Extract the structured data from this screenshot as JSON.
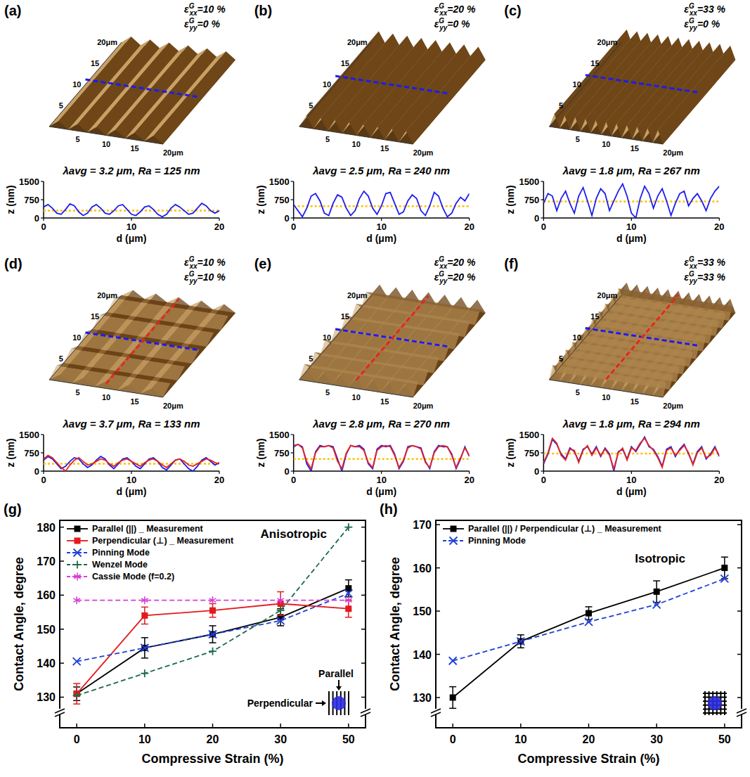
{
  "chart_data": [
    {
      "panel": "(a)",
      "type": "line",
      "title": "λavg = 3.2 μm, Ra = 125 nm",
      "strain": [
        {
          "symbol": "ε",
          "sup": "G",
          "sub": "xx",
          "text": "=10 %"
        },
        {
          "symbol": "ε",
          "sup": "G",
          "sub": "yy",
          "text": "=0 %"
        }
      ],
      "surface_labels": {
        "left": [
          "20μm",
          "15",
          "10",
          "5"
        ],
        "front": [
          "5",
          "10",
          "15",
          "20μm"
        ]
      },
      "x_label": "d (μm)",
      "y_label": "z (nm)",
      "x": [
        0,
        0.5,
        1,
        1.5,
        2,
        2.5,
        3,
        3.5,
        4,
        4.5,
        5,
        5.5,
        6,
        6.5,
        7,
        7.5,
        8,
        8.5,
        9,
        9.5,
        10,
        10.5,
        11,
        11.5,
        12,
        12.5,
        13,
        13.5,
        14,
        14.5,
        15,
        15.5,
        16,
        16.5,
        17,
        17.5,
        18,
        18.5,
        19,
        19.5,
        20
      ],
      "xlim": [
        0,
        20
      ],
      "xticks": [
        0,
        10,
        20
      ],
      "ylim": [
        0,
        1500
      ],
      "yticks": [
        0,
        750,
        1500
      ],
      "mean_z": 300,
      "series": [
        {
          "color": "#1c1cf0",
          "values": [
            450,
            550,
            400,
            200,
            150,
            350,
            580,
            500,
            250,
            100,
            200,
            450,
            550,
            400,
            200,
            150,
            300,
            500,
            550,
            350,
            150,
            100,
            250,
            450,
            500,
            350,
            150,
            50,
            150,
            400,
            550,
            450,
            300,
            150,
            200,
            400,
            600,
            500,
            300,
            200,
            300
          ]
        }
      ]
    },
    {
      "panel": "(b)",
      "type": "line",
      "title": "λavg = 2.5 μm, Ra = 240 nm",
      "strain": [
        {
          "symbol": "ε",
          "sup": "G",
          "sub": "xx",
          "text": "=20 %"
        },
        {
          "symbol": "ε",
          "sup": "G",
          "sub": "yy",
          "text": "=0 %"
        }
      ],
      "surface_labels": {
        "left": [
          "20μm",
          "15",
          "10",
          "5"
        ],
        "front": [
          "5",
          "10",
          "15",
          "20μm"
        ]
      },
      "x_label": "d (μm)",
      "y_label": "z (nm)",
      "x": [
        0,
        0.5,
        1,
        1.5,
        2,
        2.5,
        3,
        3.5,
        4,
        4.5,
        5,
        5.5,
        6,
        6.5,
        7,
        7.5,
        8,
        8.5,
        9,
        9.5,
        10,
        10.5,
        11,
        11.5,
        12,
        12.5,
        13,
        13.5,
        14,
        14.5,
        15,
        15.5,
        16,
        16.5,
        17,
        17.5,
        18,
        18.5,
        19,
        19.5,
        20
      ],
      "xlim": [
        0,
        20
      ],
      "xticks": [
        0,
        10,
        20
      ],
      "ylim": [
        0,
        1500
      ],
      "yticks": [
        0,
        750,
        1500
      ],
      "mean_z": 480,
      "series": [
        {
          "color": "#1c1cf0",
          "values": [
            550,
            300,
            50,
            400,
            900,
            1000,
            700,
            200,
            100,
            600,
            950,
            850,
            400,
            100,
            300,
            800,
            1100,
            900,
            400,
            150,
            500,
            1000,
            1050,
            600,
            150,
            250,
            700,
            950,
            800,
            300,
            100,
            500,
            1050,
            900,
            400,
            50,
            200,
            600,
            850,
            700,
            1000
          ]
        }
      ]
    },
    {
      "panel": "(c)",
      "type": "line",
      "title": "λavg = 1.8 μm, Ra = 267 nm",
      "strain": [
        {
          "symbol": "ε",
          "sup": "G",
          "sub": "xx",
          "text": "=33 %"
        },
        {
          "symbol": "ε",
          "sup": "G",
          "sub": "yy",
          "text": "=0 %"
        }
      ],
      "surface_labels": {
        "left": [
          "20μm",
          "15",
          "10",
          "5"
        ],
        "front": [
          "5",
          "10",
          "15",
          "20μm"
        ]
      },
      "x_label": "d (μm)",
      "y_label": "z (nm)",
      "x": [
        0,
        0.5,
        1,
        1.5,
        2,
        2.5,
        3,
        3.5,
        4,
        4.5,
        5,
        5.5,
        6,
        6.5,
        7,
        7.5,
        8,
        8.5,
        9,
        9.5,
        10,
        10.5,
        11,
        11.5,
        12,
        12.5,
        13,
        13.5,
        14,
        14.5,
        15,
        15.5,
        16,
        16.5,
        17,
        17.5,
        18,
        18.5,
        19,
        19.5,
        20
      ],
      "xlim": [
        0,
        20
      ],
      "xticks": [
        0,
        10,
        20
      ],
      "ylim": [
        0,
        1500
      ],
      "yticks": [
        0,
        750,
        1500
      ],
      "mean_z": 680,
      "series": [
        {
          "color": "#1c1cf0",
          "values": [
            600,
            1000,
            900,
            300,
            800,
            1100,
            600,
            200,
            900,
            1250,
            700,
            100,
            800,
            1200,
            1000,
            300,
            700,
            1100,
            1400,
            900,
            200,
            0,
            800,
            1300,
            1000,
            400,
            900,
            1200,
            700,
            100,
            600,
            1000,
            1100,
            500,
            800,
            1000,
            700,
            300,
            800,
            1100,
            1300
          ]
        }
      ]
    },
    {
      "panel": "(d)",
      "type": "line",
      "title": "λavg = 3.7 μm, Ra = 133 nm",
      "strain": [
        {
          "symbol": "ε",
          "sup": "G",
          "sub": "xx",
          "text": "=10 %"
        },
        {
          "symbol": "ε",
          "sup": "G",
          "sub": "yy",
          "text": "=10 %"
        }
      ],
      "surface_labels": {
        "left": [
          "20μm",
          "15",
          "10",
          "5"
        ],
        "front": [
          "5",
          "10",
          "15",
          "20μm"
        ]
      },
      "x_label": "d (μm)",
      "y_label": "z (nm)",
      "x": [
        0,
        0.5,
        1,
        1.5,
        2,
        2.5,
        3,
        3.5,
        4,
        4.5,
        5,
        5.5,
        6,
        6.5,
        7,
        7.5,
        8,
        8.5,
        9,
        9.5,
        10,
        10.5,
        11,
        11.5,
        12,
        12.5,
        13,
        13.5,
        14,
        14.5,
        15,
        15.5,
        16,
        16.5,
        17,
        17.5,
        18,
        18.5,
        19,
        19.5,
        20
      ],
      "xlim": [
        0,
        20
      ],
      "xticks": [
        0,
        10,
        20
      ],
      "ylim": [
        0,
        1500
      ],
      "yticks": [
        0,
        750,
        1500
      ],
      "mean_z": 300,
      "series": [
        {
          "color": "#1c1cf0",
          "values": [
            450,
            600,
            500,
            300,
            100,
            200,
            400,
            550,
            500,
            300,
            150,
            250,
            450,
            600,
            500,
            250,
            100,
            300,
            500,
            550,
            400,
            200,
            100,
            300,
            500,
            550,
            400,
            150,
            50,
            250,
            450,
            500,
            300,
            100,
            0,
            200,
            450,
            550,
            400,
            250,
            350
          ]
        },
        {
          "color": "#e8261c",
          "values": [
            500,
            650,
            550,
            350,
            150,
            0,
            250,
            450,
            550,
            400,
            250,
            300,
            400,
            500,
            450,
            300,
            200,
            350,
            450,
            500,
            400,
            300,
            200,
            350,
            450,
            500,
            400,
            250,
            150,
            300,
            450,
            500,
            400,
            250,
            200,
            300,
            400,
            500,
            450,
            350,
            300
          ]
        }
      ]
    },
    {
      "panel": "(e)",
      "type": "line",
      "title": "λavg = 2.8 μm, Ra = 270 nm",
      "strain": [
        {
          "symbol": "ε",
          "sup": "G",
          "sub": "xx",
          "text": "=20 %"
        },
        {
          "symbol": "ε",
          "sup": "G",
          "sub": "yy",
          "text": "=20 %"
        }
      ],
      "surface_labels": {
        "left": [
          "20μm",
          "15",
          "10",
          "5"
        ],
        "front": [
          "5",
          "10",
          "15",
          "20μm"
        ]
      },
      "x_label": "d (μm)",
      "y_label": "z (nm)",
      "x": [
        0,
        0.5,
        1,
        1.5,
        2,
        2.5,
        3,
        3.5,
        4,
        4.5,
        5,
        5.5,
        6,
        6.5,
        7,
        7.5,
        8,
        8.5,
        9,
        9.5,
        10,
        10.5,
        11,
        11.5,
        12,
        12.5,
        13,
        13.5,
        14,
        14.5,
        15,
        15.5,
        16,
        16.5,
        17,
        17.5,
        18,
        18.5,
        19,
        19.5,
        20
      ],
      "xlim": [
        0,
        20
      ],
      "xticks": [
        0,
        10,
        20
      ],
      "ylim": [
        0,
        1500
      ],
      "yticks": [
        0,
        750,
        1500
      ],
      "mean_z": 500,
      "series": [
        {
          "color": "#1c1cf0",
          "values": [
            1000,
            1100,
            1000,
            300,
            0,
            800,
            1050,
            1000,
            1050,
            1000,
            500,
            0,
            700,
            1050,
            1000,
            1050,
            900,
            300,
            100,
            900,
            1050,
            1000,
            1050,
            700,
            100,
            400,
            1000,
            1050,
            1000,
            950,
            400,
            100,
            800,
            1050,
            1000,
            1000,
            700,
            100,
            500,
            1000,
            600
          ]
        },
        {
          "color": "#e8261c",
          "values": [
            1050,
            1100,
            950,
            400,
            100,
            750,
            1000,
            1000,
            1050,
            950,
            400,
            100,
            750,
            1050,
            1000,
            1000,
            850,
            350,
            150,
            850,
            1000,
            1050,
            1000,
            650,
            150,
            450,
            950,
            1050,
            1000,
            900,
            350,
            150,
            750,
            1000,
            1050,
            1000,
            650,
            150,
            550,
            950,
            650
          ]
        }
      ]
    },
    {
      "panel": "(f)",
      "type": "line",
      "title": "λavg = 1.8 μm, Ra = 294 nm",
      "strain": [
        {
          "symbol": "ε",
          "sup": "G",
          "sub": "xx",
          "text": "=33 %"
        },
        {
          "symbol": "ε",
          "sup": "G",
          "sub": "yy",
          "text": "=33 %"
        }
      ],
      "surface_labels": {
        "left": [
          "20μm",
          "15",
          "10",
          "5"
        ],
        "front": [
          "5",
          "10",
          "15",
          "20μm"
        ]
      },
      "x_label": "d (μm)",
      "y_label": "z (nm)",
      "x": [
        0,
        0.5,
        1,
        1.5,
        2,
        2.5,
        3,
        3.5,
        4,
        4.5,
        5,
        5.5,
        6,
        6.5,
        7,
        7.5,
        8,
        8.5,
        9,
        9.5,
        10,
        10.5,
        11,
        11.5,
        12,
        12.5,
        13,
        13.5,
        14,
        14.5,
        15,
        15.5,
        16,
        16.5,
        17,
        17.5,
        18,
        18.5,
        19,
        19.5,
        20
      ],
      "xlim": [
        0,
        20
      ],
      "xticks": [
        0,
        10,
        20
      ],
      "ylim": [
        0,
        1500
      ],
      "yticks": [
        0,
        750,
        1500
      ],
      "mean_z": 720,
      "series": [
        {
          "color": "#1c1cf0",
          "values": [
            300,
            700,
            1300,
            1100,
            700,
            500,
            950,
            800,
            400,
            900,
            1000,
            700,
            1000,
            600,
            950,
            700,
            0,
            800,
            900,
            500,
            1000,
            800,
            1100,
            1400,
            1000,
            900,
            600,
            200,
            900,
            1000,
            600,
            900,
            1100,
            700,
            300,
            800,
            1000,
            500,
            700,
            1000,
            600
          ]
        },
        {
          "color": "#e8261c",
          "values": [
            350,
            750,
            1350,
            1150,
            650,
            450,
            900,
            850,
            350,
            850,
            1050,
            650,
            950,
            650,
            900,
            650,
            100,
            750,
            950,
            450,
            950,
            850,
            1150,
            1350,
            1050,
            850,
            550,
            150,
            850,
            950,
            650,
            850,
            1050,
            750,
            250,
            750,
            950,
            550,
            650,
            950,
            650
          ]
        }
      ]
    },
    {
      "panel": "(g)",
      "type": "line",
      "annotation": "Anisotropic",
      "schematic_labels": {
        "parallel": "Parallel",
        "perpendicular": "Perpendicular"
      },
      "x_label": "Compressive Strain (%)",
      "y_label": "Contact Angle, degree",
      "categories": [
        "0",
        "10",
        "20",
        "30",
        "50"
      ],
      "ylim": [
        121,
        182
      ],
      "yticks": [
        130,
        140,
        150,
        160,
        170,
        180
      ],
      "legend": "upper left",
      "series": [
        {
          "name": "Parallel (||) _ Measurement",
          "color": "#000000",
          "marker": "square",
          "line_style": "solid",
          "values": [
            131,
            144.5,
            148.5,
            153.5,
            162
          ],
          "errors": [
            2,
            3,
            2.5,
            2.5,
            2.5
          ]
        },
        {
          "name": "Perpendicular (⊥) _ Measurement",
          "color": "#e31a1c",
          "marker": "square",
          "line_style": "solid",
          "values": [
            131,
            154,
            155.5,
            157.5,
            156
          ],
          "errors": [
            3,
            2.5,
            2,
            3.5,
            2.5
          ]
        },
        {
          "name": "Pinning Mode",
          "color": "#1f3fd6",
          "marker": "x",
          "line_style": "dashed",
          "values": [
            140.5,
            144.5,
            148.5,
            152.5,
            160.5
          ]
        },
        {
          "name": "Wenzel Mode",
          "color": "#1a6b4a",
          "marker": "plus",
          "line_style": "dashed",
          "values": [
            130.5,
            137,
            143.5,
            155.5,
            180
          ]
        },
        {
          "name": "Cassie Mode (f=0.2)",
          "color": "#d43fd4",
          "marker": "star",
          "line_style": "dashed",
          "values": [
            158.5,
            158.5,
            158.5,
            158.5,
            158.5
          ]
        }
      ]
    },
    {
      "panel": "(h)",
      "type": "line",
      "annotation": "Isotropic",
      "x_label": "Compressive Strain (%)",
      "y_label": "Contact Angle, degree",
      "categories": [
        "0",
        "10",
        "20",
        "30",
        "50"
      ],
      "ylim": [
        123,
        171
      ],
      "yticks": [
        130,
        140,
        150,
        160,
        170
      ],
      "legend": "upper left",
      "series": [
        {
          "name": "Parallel (||) / Perpendicular (⊥) _ Measurement",
          "color": "#000000",
          "marker": "square",
          "line_style": "solid",
          "values": [
            130,
            143,
            149.5,
            154.5,
            160
          ],
          "errors": [
            2.5,
            1.5,
            1.5,
            2.5,
            2.5
          ]
        },
        {
          "name": "Pinning Mode",
          "color": "#1f3fd6",
          "marker": "x",
          "line_style": "dashed",
          "values": [
            138.5,
            143,
            147.5,
            151.5,
            157.5
          ]
        }
      ]
    }
  ]
}
